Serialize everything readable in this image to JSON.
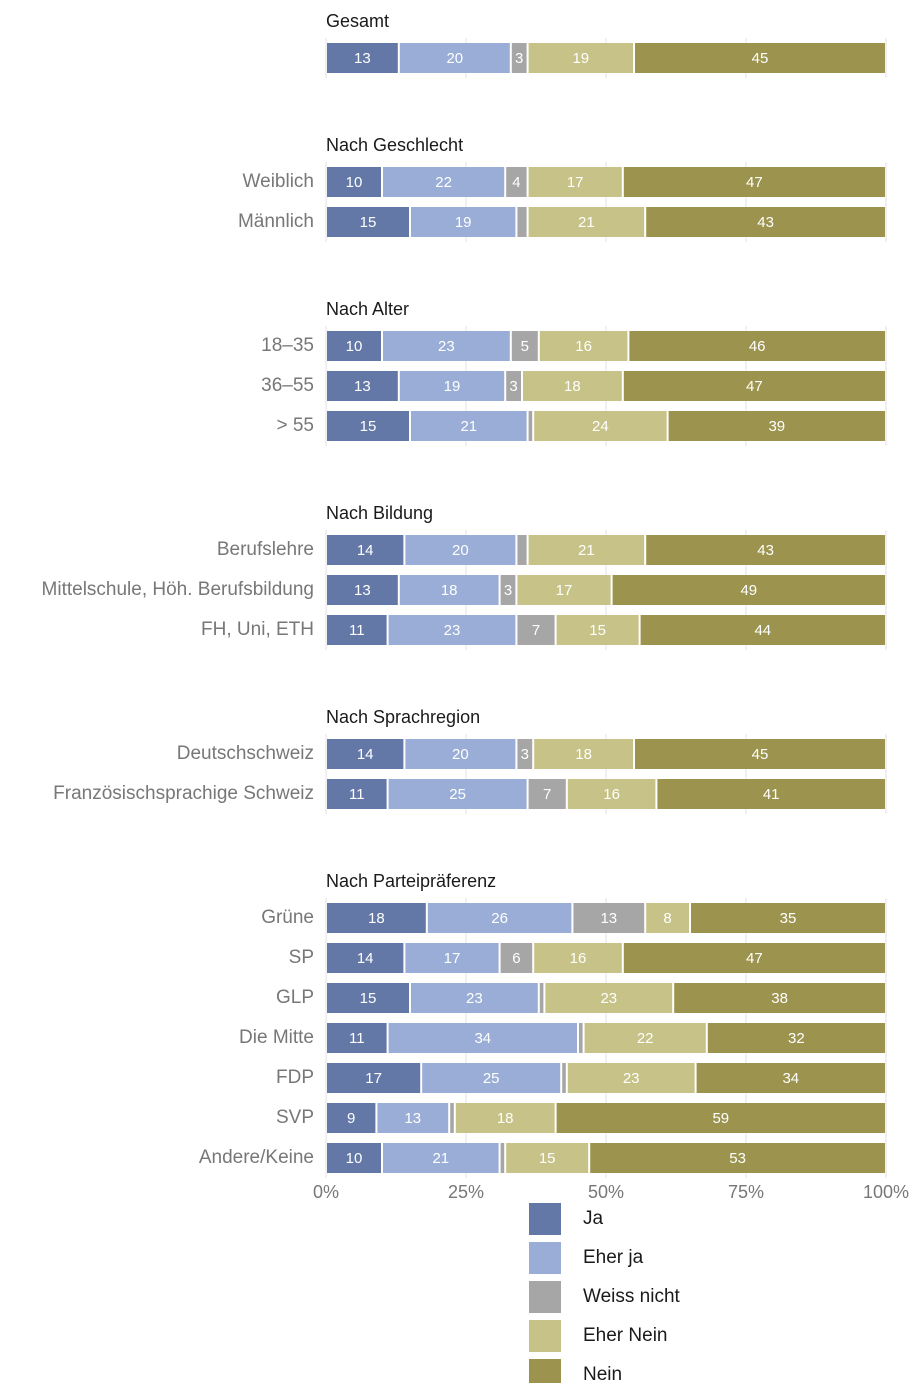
{
  "chart_data": {
    "type": "bar",
    "orientation": "horizontal",
    "stacked": true,
    "percent_stacked": true,
    "xlim": [
      0,
      100
    ],
    "x_ticks": [
      "0%",
      "25%",
      "50%",
      "75%",
      "100%"
    ],
    "grid": true,
    "legend_position": "bottom",
    "series": [
      {
        "name": "Ja",
        "color": "#6378a6"
      },
      {
        "name": "Eher ja",
        "color": "#99add6"
      },
      {
        "name": "Weiss nicht",
        "color": "#a6a6a6"
      },
      {
        "name": "Eher Nein",
        "color": "#c7c287"
      },
      {
        "name": "Nein",
        "color": "#9c944e"
      }
    ],
    "groups": [
      {
        "title": "Gesamt",
        "rows": [
          {
            "label": "",
            "values": [
              13,
              20,
              3,
              19,
              45
            ],
            "labels": [
              "13",
              "20",
              "3",
              "19",
              "45"
            ]
          }
        ]
      },
      {
        "title": "Nach Geschlecht",
        "rows": [
          {
            "label": "Weiblich",
            "values": [
              10,
              22,
              4,
              17,
              47
            ],
            "labels": [
              "10",
              "22",
              "4",
              "17",
              "47"
            ]
          },
          {
            "label": "Männlich",
            "values": [
              15,
              19,
              2,
              21,
              43
            ],
            "labels": [
              "15",
              "19",
              "",
              "21",
              "43"
            ]
          }
        ]
      },
      {
        "title": "Nach Alter",
        "rows": [
          {
            "label": "18–35",
            "values": [
              10,
              23,
              5,
              16,
              46
            ],
            "labels": [
              "10",
              "23",
              "5",
              "16",
              "46"
            ]
          },
          {
            "label": "36–55",
            "values": [
              13,
              19,
              3,
              18,
              47
            ],
            "labels": [
              "13",
              "19",
              "3",
              "18",
              "47"
            ]
          },
          {
            "label": "> 55",
            "values": [
              15,
              21,
              1,
              24,
              39
            ],
            "labels": [
              "15",
              "21",
              "",
              "24",
              "39"
            ]
          }
        ]
      },
      {
        "title": "Nach Bildung",
        "rows": [
          {
            "label": "Berufslehre",
            "values": [
              14,
              20,
              2,
              21,
              43
            ],
            "labels": [
              "14",
              "20",
              "",
              "21",
              "43"
            ]
          },
          {
            "label": "Mittelschule, Höh. Berufsbildung",
            "values": [
              13,
              18,
              3,
              17,
              49
            ],
            "labels": [
              "13",
              "18",
              "3",
              "17",
              "49"
            ]
          },
          {
            "label": "FH, Uni, ETH",
            "values": [
              11,
              23,
              7,
              15,
              44
            ],
            "labels": [
              "11",
              "23",
              "7",
              "15",
              "44"
            ]
          }
        ]
      },
      {
        "title": "Nach Sprachregion",
        "rows": [
          {
            "label": "Deutschschweiz",
            "values": [
              14,
              20,
              3,
              18,
              45
            ],
            "labels": [
              "14",
              "20",
              "3",
              "18",
              "45"
            ]
          },
          {
            "label": "Französischsprachige Schweiz",
            "values": [
              11,
              25,
              7,
              16,
              41
            ],
            "labels": [
              "11",
              "25",
              "7",
              "16",
              "41"
            ]
          }
        ]
      },
      {
        "title": "Nach Parteipräferenz",
        "rows": [
          {
            "label": "Grüne",
            "values": [
              18,
              26,
              13,
              8,
              35
            ],
            "labels": [
              "18",
              "26",
              "13",
              "8",
              "35"
            ]
          },
          {
            "label": "SP",
            "values": [
              14,
              17,
              6,
              16,
              47
            ],
            "labels": [
              "14",
              "17",
              "6",
              "16",
              "47"
            ]
          },
          {
            "label": "GLP",
            "values": [
              15,
              23,
              1,
              23,
              38
            ],
            "labels": [
              "15",
              "23",
              "",
              "23",
              "38"
            ]
          },
          {
            "label": "Die Mitte",
            "values": [
              11,
              34,
              1,
              22,
              32
            ],
            "labels": [
              "11",
              "34",
              "",
              "22",
              "32"
            ]
          },
          {
            "label": "FDP",
            "values": [
              17,
              25,
              1,
              23,
              34
            ],
            "labels": [
              "17",
              "25",
              "",
              "23",
              "34"
            ]
          },
          {
            "label": "SVP",
            "values": [
              9,
              13,
              1,
              18,
              59
            ],
            "labels": [
              "9",
              "13",
              "",
              "18",
              "59"
            ]
          },
          {
            "label": "Andere/Keine",
            "values": [
              10,
              21,
              1,
              15,
              53
            ],
            "labels": [
              "10",
              "21",
              "",
              "15",
              "53"
            ]
          }
        ]
      }
    ]
  }
}
